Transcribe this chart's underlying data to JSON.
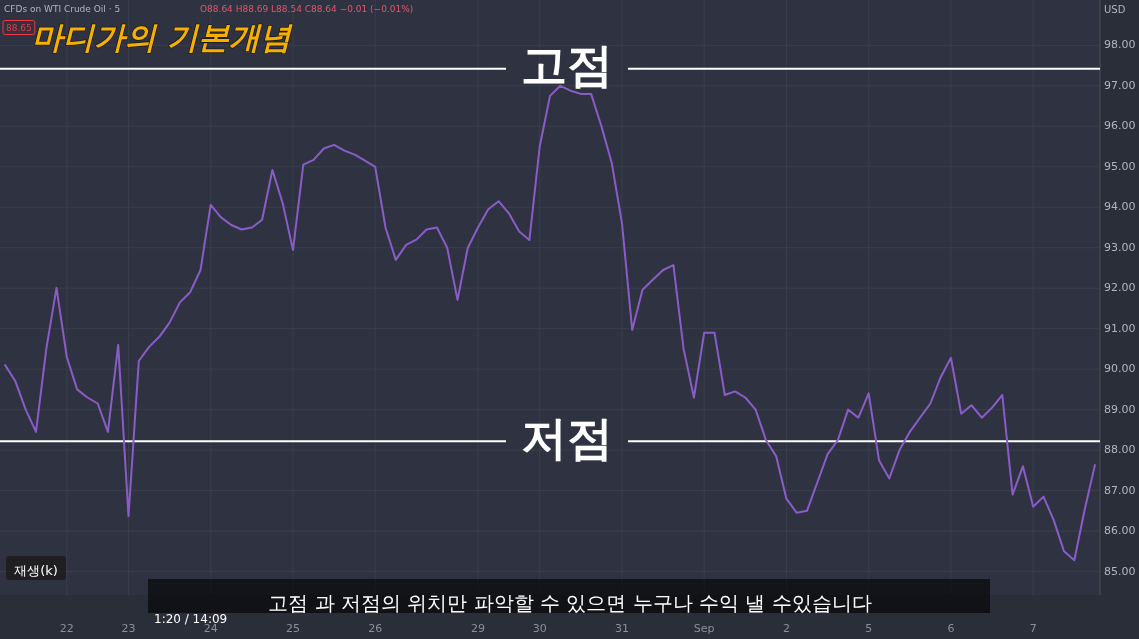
{
  "chart_data": {
    "type": "line",
    "title": "마디가의 기본개념",
    "ylim": [
      84.42,
      99.12
    ],
    "categories": [
      null,
      null,
      null,
      null,
      null,
      null,
      "22",
      null,
      null,
      null,
      null,
      null,
      "23",
      null,
      null,
      null,
      null,
      null,
      null,
      null,
      "24",
      null,
      null,
      null,
      null,
      null,
      null,
      null,
      "25",
      null,
      null,
      null,
      null,
      null,
      null,
      null,
      "26",
      null,
      null,
      null,
      null,
      null,
      null,
      null,
      null,
      null,
      "29",
      null,
      null,
      null,
      null,
      null,
      "30",
      null,
      null,
      null,
      null,
      null,
      null,
      null,
      "31",
      null,
      null,
      null,
      null,
      null,
      null,
      null,
      "Sep",
      null,
      null,
      null,
      null,
      null,
      null,
      null,
      "2",
      null,
      null,
      null,
      null,
      null,
      null,
      null,
      "5",
      null,
      null,
      null,
      null,
      null,
      null,
      null,
      "6",
      null,
      null,
      null,
      null,
      null,
      null,
      null,
      "7",
      null,
      null,
      null,
      null,
      null,
      null
    ],
    "yticks": [
      {
        "value": 85,
        "label": "85.00"
      },
      {
        "value": 86,
        "label": "86.00"
      },
      {
        "value": 87,
        "label": "87.00"
      },
      {
        "value": 88,
        "label": "88.00"
      },
      {
        "value": 89,
        "label": "89.00"
      },
      {
        "value": 90,
        "label": "90.00"
      },
      {
        "value": 91,
        "label": "91.00"
      },
      {
        "value": 92,
        "label": "92.00"
      },
      {
        "value": 93,
        "label": "93.00"
      },
      {
        "value": 94,
        "label": "94.00"
      },
      {
        "value": 95,
        "label": "95.00"
      },
      {
        "value": 96,
        "label": "96.00"
      },
      {
        "value": 97,
        "label": "97.00"
      },
      {
        "value": 98,
        "label": "98.00"
      }
    ],
    "grid": true,
    "series": [
      {
        "color": "#8a5cc8",
        "values": [
          90.1,
          89.7,
          89.0,
          88.45,
          90.5,
          92.01,
          90.3,
          89.5,
          89.3,
          89.15,
          88.45,
          90.6,
          86.37,
          90.2,
          90.55,
          90.8,
          91.15,
          91.65,
          91.9,
          92.45,
          94.06,
          93.75,
          93.56,
          93.45,
          93.5,
          93.69,
          94.92,
          94.1,
          92.94,
          95.05,
          95.17,
          95.45,
          95.54,
          95.4,
          95.3,
          95.15,
          95.0,
          93.5,
          92.7,
          93.07,
          93.2,
          93.45,
          93.5,
          93.0,
          91.71,
          93.0,
          93.5,
          93.95,
          94.15,
          93.85,
          93.4,
          93.19,
          95.5,
          96.75,
          97.0,
          96.88,
          96.8,
          96.8,
          96.0,
          95.1,
          93.6,
          90.97,
          91.96,
          92.21,
          92.45,
          92.57,
          90.5,
          89.3,
          90.9,
          90.9,
          89.36,
          89.45,
          89.3,
          89.0,
          88.25,
          87.85,
          86.8,
          86.45,
          86.5,
          87.2,
          87.9,
          88.25,
          89.0,
          88.8,
          89.4,
          87.75,
          87.3,
          88.0,
          88.45,
          88.8,
          89.15,
          89.8,
          90.28,
          88.9,
          89.11,
          88.8,
          89.05,
          89.36,
          86.9,
          87.6,
          86.6,
          86.85,
          86.27,
          85.5,
          85.28,
          86.52,
          87.63
        ]
      }
    ],
    "ref_lines": [
      {
        "axis": "y",
        "value": 97.42,
        "label": "고점",
        "color": "#ffffff"
      },
      {
        "axis": "y",
        "value": 88.22,
        "label": "저점",
        "color": "#ffffff"
      }
    ],
    "annotations": [
      "CFDs on WTI Crude Oil · 5",
      "O88.64 H88.69 L88.54 C88.64 −0.01 (−0.01%)",
      "88.65",
      "USD",
      "재생(k)",
      "1:20 / 14:09",
      "고점 과 저점의 위치만 파악할 수 있으면 누구나 수익 낼 수있습니다"
    ]
  }
}
